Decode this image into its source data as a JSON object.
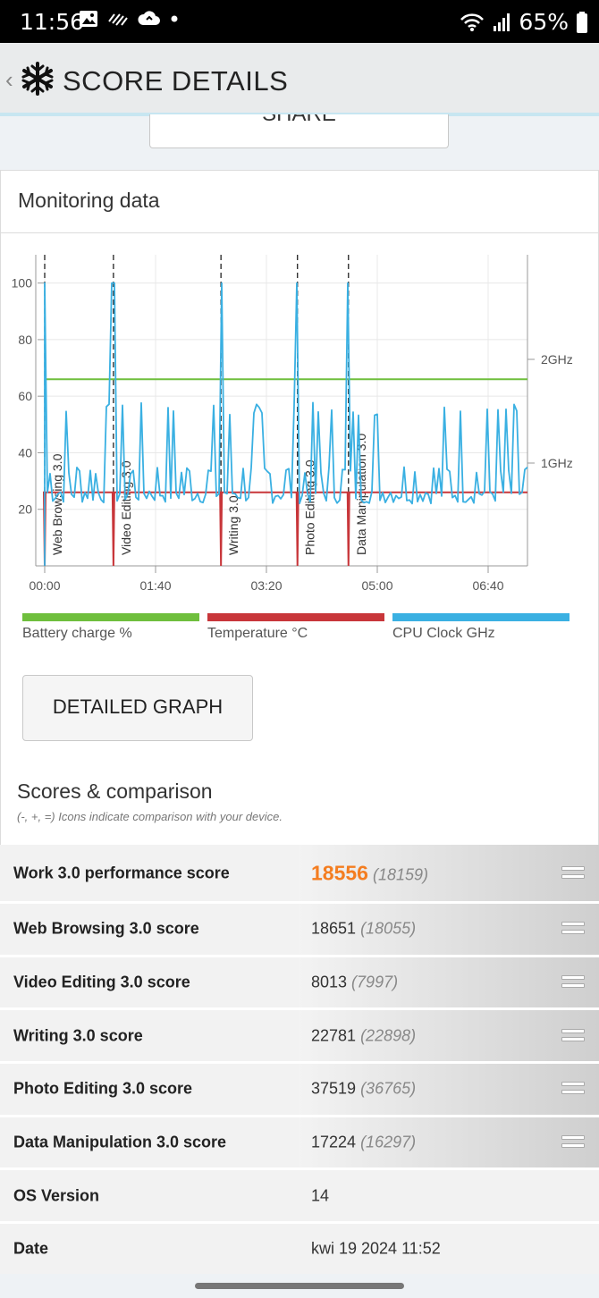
{
  "status_bar": {
    "time": "11:56",
    "battery": "65%"
  },
  "app_bar": {
    "back": "‹",
    "title": "SCORE DETAILS"
  },
  "share": {
    "label": "SHARE"
  },
  "monitoring": {
    "title": "Monitoring data"
  },
  "chart_data": {
    "type": "line",
    "x_ticks": [
      "00:00",
      "01:40",
      "03:20",
      "05:00",
      "06:40"
    ],
    "y_ticks": [
      20,
      40,
      60,
      80,
      100
    ],
    "right_ticks": [
      "1GHz",
      "2GHz"
    ],
    "ylim": [
      0,
      110
    ],
    "markers": [
      {
        "label": "Web Browsing 3.0",
        "x": "00:00"
      },
      {
        "label": "Video Editing 3.0",
        "x": "01:02"
      },
      {
        "label": "Writing 3.0",
        "x": "02:39"
      },
      {
        "label": "Photo Editing 3.0",
        "x": "03:48"
      },
      {
        "label": "Data Manipulation 3.0",
        "x": "04:34"
      }
    ],
    "series": [
      {
        "name": "Battery charge %",
        "color": "#6fbf3d",
        "values": [
          66,
          66
        ]
      },
      {
        "name": "Temperature °C",
        "color": "#c8363a",
        "values": [
          26,
          26
        ]
      },
      {
        "name": "CPU Clock GHz",
        "color": "#3ab0e2",
        "values": [
          100,
          22,
          28,
          22,
          100,
          22,
          45,
          24,
          100,
          22,
          35,
          22,
          60,
          22,
          58,
          22,
          100,
          22,
          54,
          22,
          38,
          22,
          40,
          26
        ]
      }
    ]
  },
  "legend": [
    {
      "label": "Battery charge %",
      "color": "#6fbf3d"
    },
    {
      "label": "Temperature °C",
      "color": "#c8363a"
    },
    {
      "label": "CPU Clock GHz",
      "color": "#3ab0e2"
    }
  ],
  "detailed_graph": {
    "label": "DETAILED GRAPH"
  },
  "scores": {
    "title": "Scores & comparison",
    "subtitle": "(-, +, =) Icons indicate comparison with your device.",
    "rows": [
      {
        "label": "Work 3.0 performance score",
        "value": "18556",
        "compare": "(18159)"
      },
      {
        "label": "Web Browsing 3.0 score",
        "value": "18651",
        "compare": "(18055)"
      },
      {
        "label": "Video Editing 3.0 score",
        "value": "8013",
        "compare": "(7997)"
      },
      {
        "label": "Writing 3.0 score",
        "value": "22781",
        "compare": "(22898)"
      },
      {
        "label": "Photo Editing 3.0 score",
        "value": "37519",
        "compare": "(36765)"
      },
      {
        "label": "Data Manipulation 3.0 score",
        "value": "17224",
        "compare": "(16297)"
      },
      {
        "label": "OS Version",
        "value": "14",
        "compare": ""
      },
      {
        "label": "Date",
        "value": "kwi 19 2024 11:52",
        "compare": ""
      }
    ]
  }
}
